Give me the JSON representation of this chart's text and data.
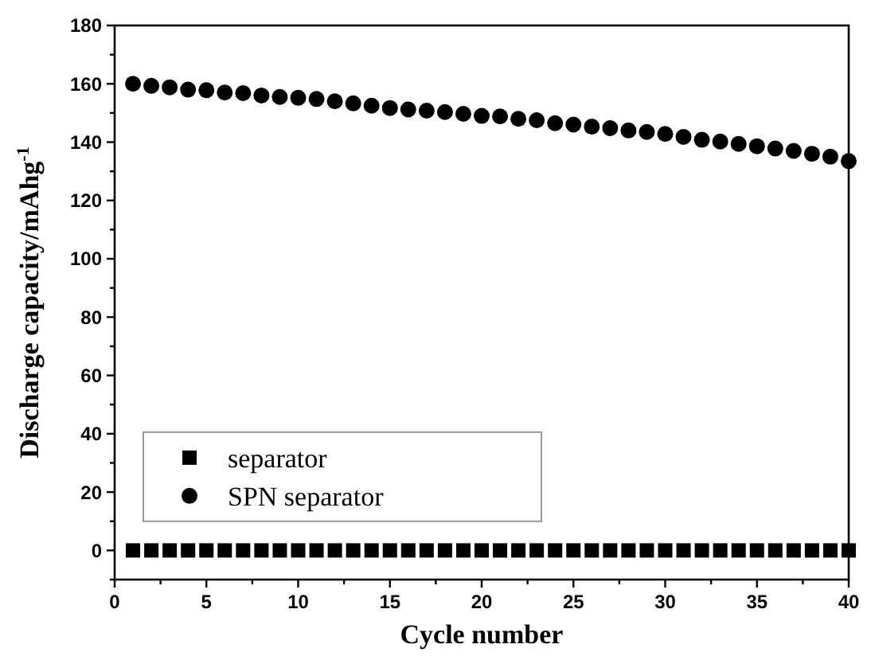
{
  "chart_data": {
    "type": "scatter",
    "xlabel": "Cycle number",
    "ylabel": "Discharge capacity/mAhg$^{-1}$",
    "xlim": [
      0,
      40
    ],
    "ylim": [
      -10,
      180
    ],
    "xticks": [
      0,
      {
        "value": 2.5,
        "label": null
      },
      5,
      {
        "value": 7.5,
        "label": null
      },
      10,
      {
        "value": 12.5,
        "label": null
      },
      15,
      {
        "value": 17.5,
        "label": null
      },
      20,
      {
        "value": 22.5,
        "label": null
      },
      25,
      {
        "value": 27.5,
        "label": null
      },
      30,
      {
        "value": 32.5,
        "label": null
      },
      35,
      {
        "value": 37.5,
        "label": null
      },
      40
    ],
    "yticks": [
      {
        "value": -10,
        "label": null
      },
      0,
      {
        "value": 10,
        "label": null
      },
      20,
      {
        "value": 30,
        "label": null
      },
      40,
      {
        "value": 50,
        "label": null
      },
      60,
      {
        "value": 70,
        "label": null
      },
      80,
      {
        "value": 90,
        "label": null
      },
      100,
      {
        "value": 110,
        "label": null
      },
      120,
      {
        "value": 130,
        "label": null
      },
      140,
      {
        "value": 150,
        "label": null
      },
      160,
      {
        "value": 170,
        "label": null
      },
      180
    ],
    "grid": false,
    "legend": "bottom left",
    "x": [
      1,
      2,
      3,
      4,
      5,
      6,
      7,
      8,
      9,
      10,
      11,
      12,
      13,
      14,
      15,
      16,
      17,
      18,
      19,
      20,
      21,
      22,
      23,
      24,
      25,
      26,
      27,
      28,
      29,
      30,
      31,
      32,
      33,
      34,
      35,
      36,
      37,
      38,
      39,
      40
    ],
    "series": [
      {
        "name": "separator",
        "color": "#000000",
        "marker": "square",
        "values": [
          0,
          0,
          0,
          0,
          0,
          0,
          0,
          0,
          0,
          0,
          0,
          0,
          0,
          0,
          0,
          0,
          0,
          0,
          0,
          0,
          0,
          0,
          0,
          0,
          0,
          0,
          0,
          0,
          0,
          0,
          0,
          0,
          0,
          0,
          0,
          0,
          0,
          0,
          0,
          0
        ]
      },
      {
        "name": "SPN separator",
        "color": "#000000",
        "marker": "circle",
        "values": [
          160,
          159.3,
          158.8,
          158,
          157.8,
          157,
          156.8,
          156,
          155.5,
          155.2,
          154.8,
          154,
          153.3,
          152.5,
          151.7,
          151.2,
          150.8,
          150.3,
          149.7,
          149,
          148.8,
          148,
          147.5,
          146.5,
          146,
          145.3,
          144.8,
          144,
          143.5,
          142.8,
          141.8,
          140.8,
          140.2,
          139.4,
          138.6,
          137.8,
          137,
          136,
          135,
          133.5
        ]
      }
    ]
  }
}
